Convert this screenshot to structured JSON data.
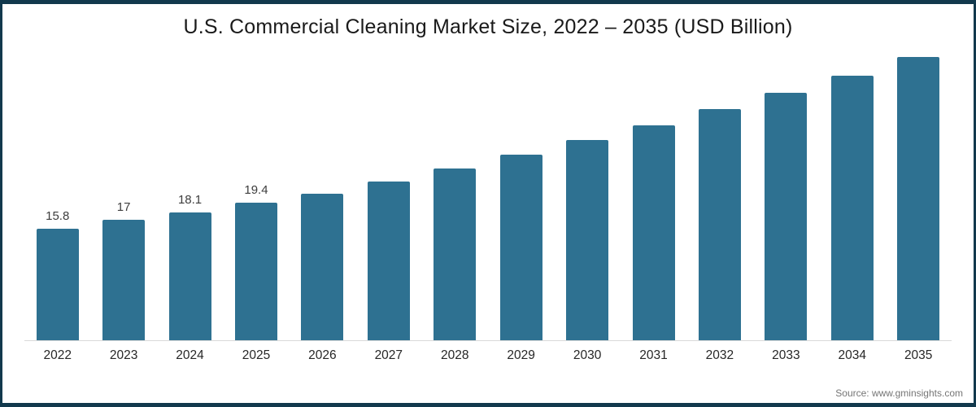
{
  "chart_data": {
    "type": "bar",
    "title": "U.S. Commercial Cleaning Market Size, 2022 – 2035 (USD Billion)",
    "categories": [
      "2022",
      "2023",
      "2024",
      "2025",
      "2026",
      "2027",
      "2028",
      "2029",
      "2030",
      "2031",
      "2032",
      "2033",
      "2034",
      "2035"
    ],
    "values": [
      15.8,
      17,
      18.1,
      19.4,
      20.7,
      22.4,
      24.3,
      26.2,
      28.3,
      30.4,
      32.6,
      34.9,
      37.4,
      40
    ],
    "data_labels": [
      "15.8",
      "17",
      "18.1",
      "19.4",
      "",
      "",
      "",
      "",
      "",
      "",
      "",
      "",
      "",
      ""
    ],
    "xlabel": "",
    "ylabel": "",
    "ylim": [
      0,
      40
    ],
    "grid": false,
    "legend": false,
    "bar_color": "#2e7191",
    "axis_line_color": "#d9d9d9"
  },
  "frame": {
    "border_color": "#12394d",
    "background": "#ffffff",
    "title_color": "#1a1a1a"
  },
  "footer": {
    "source": "Source: www.gminsights.com"
  }
}
